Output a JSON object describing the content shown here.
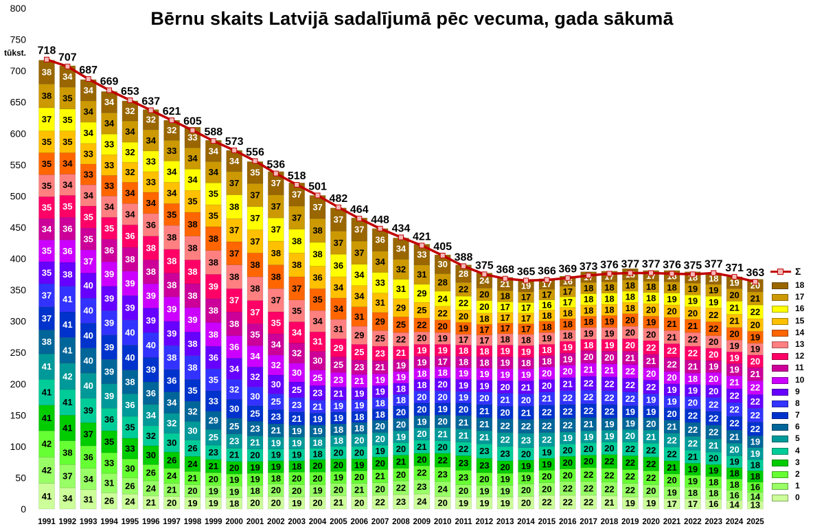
{
  "chart_data": {
    "type": "bar",
    "title": "Bērnu skaits Latvijā sadalījumā pēc vecuma, gada sākumā",
    "ylabel": "tūkst.",
    "ylim": [
      0,
      800
    ],
    "yticks": [
      0,
      50,
      100,
      150,
      200,
      250,
      300,
      350,
      400,
      450,
      500,
      550,
      600,
      650,
      700,
      750,
      800
    ],
    "grid": false,
    "stacked": true,
    "legend_position": "right",
    "categories": [
      "1991",
      "1992",
      "1993",
      "1994",
      "1995",
      "1996",
      "1997",
      "1998",
      "1999",
      "2000",
      "2001",
      "2002",
      "2003",
      "2004",
      "2005",
      "2006",
      "2007",
      "2008",
      "2009",
      "2010",
      "2011",
      "2012",
      "2013",
      "2014",
      "2015",
      "2016",
      "2017",
      "2018",
      "2019",
      "2020",
      "2021",
      "2022",
      "2023",
      "2024",
      "2025"
    ],
    "series": [
      {
        "name": "0",
        "color": "#ccff99",
        "values": [
          41,
          34,
          31,
          26,
          24,
          21,
          20,
          19,
          19,
          18,
          20,
          20,
          19,
          20,
          21,
          20,
          22,
          23,
          24,
          20,
          19,
          19,
          19,
          20,
          22,
          22,
          22,
          21,
          19,
          19,
          17,
          17,
          16,
          14,
          13
        ]
      },
      {
        "name": "1",
        "color": "#99ff66",
        "values": [
          42,
          37,
          34,
          31,
          26,
          24,
          21,
          20,
          19,
          19,
          18,
          20,
          20,
          19,
          20,
          21,
          20,
          22,
          23,
          24,
          20,
          19,
          19,
          20,
          20,
          22,
          22,
          22,
          22,
          20,
          19,
          18,
          18,
          16,
          14
        ]
      },
      {
        "name": "2",
        "color": "#66ff33",
        "values": [
          42,
          38,
          36,
          33,
          30,
          26,
          24,
          21,
          20,
          19,
          19,
          18,
          20,
          20,
          19,
          20,
          21,
          20,
          22,
          23,
          23,
          20,
          19,
          19,
          20,
          20,
          22,
          22,
          22,
          22,
          20,
          19,
          18,
          18,
          16
        ]
      },
      {
        "name": "3",
        "color": "#00cc00",
        "values": [
          41,
          41,
          37,
          35,
          33,
          30,
          26,
          24,
          21,
          20,
          19,
          19,
          18,
          20,
          20,
          19,
          20,
          21,
          20,
          22,
          23,
          23,
          20,
          19,
          19,
          20,
          20,
          22,
          22,
          22,
          21,
          19,
          19,
          18,
          18
        ]
      },
      {
        "name": "4",
        "color": "#00cc99",
        "values": [
          41,
          41,
          39,
          36,
          35,
          32,
          30,
          26,
          23,
          21,
          20,
          19,
          19,
          18,
          20,
          20,
          19,
          20,
          21,
          20,
          22,
          23,
          23,
          20,
          19,
          20,
          20,
          20,
          22,
          22,
          22,
          21,
          20,
          19,
          18
        ]
      },
      {
        "name": "5",
        "color": "#009999",
        "values": [
          41,
          42,
          40,
          39,
          36,
          34,
          32,
          30,
          25,
          23,
          21,
          19,
          19,
          18,
          18,
          20,
          20,
          19,
          20,
          21,
          21,
          21,
          22,
          23,
          22,
          19,
          19,
          19,
          20,
          21,
          22,
          22,
          21,
          20,
          19
        ]
      },
      {
        "name": "6",
        "color": "#006699",
        "values": [
          38,
          41,
          40,
          39,
          38,
          36,
          34,
          32,
          29,
          25,
          23,
          21,
          19,
          19,
          18,
          18,
          20,
          20,
          19,
          20,
          21,
          21,
          22,
          22,
          22,
          22,
          21,
          19,
          19,
          20,
          21,
          22,
          22,
          21,
          19
        ]
      },
      {
        "name": "7",
        "color": "#0033cc",
        "values": [
          37,
          41,
          40,
          39,
          40,
          39,
          36,
          35,
          33,
          30,
          25,
          23,
          21,
          19,
          19,
          18,
          18,
          20,
          20,
          19,
          20,
          21,
          20,
          21,
          22,
          22,
          22,
          22,
          19,
          19,
          20,
          22,
          22,
          22,
          22
        ]
      },
      {
        "name": "8",
        "color": "#3333ff",
        "values": [
          37,
          41,
          40,
          39,
          40,
          40,
          38,
          38,
          35,
          32,
          30,
          25,
          23,
          21,
          19,
          19,
          18,
          18,
          20,
          20,
          19,
          20,
          21,
          20,
          21,
          22,
          22,
          22,
          22,
          19,
          19,
          20,
          22,
          22,
          22
        ]
      },
      {
        "name": "9",
        "color": "#6600ff",
        "values": [
          35,
          38,
          40,
          39,
          39,
          39,
          39,
          38,
          36,
          34,
          32,
          30,
          25,
          23,
          21,
          19,
          19,
          18,
          18,
          20,
          19,
          19,
          20,
          21,
          20,
          21,
          22,
          22,
          22,
          22,
          19,
          19,
          20,
          22,
          22
        ]
      },
      {
        "name": "10",
        "color": "#cc00ff",
        "values": [
          35,
          36,
          37,
          39,
          39,
          39,
          39,
          39,
          38,
          36,
          34,
          32,
          30,
          25,
          23,
          21,
          19,
          19,
          18,
          18,
          19,
          19,
          19,
          19,
          20,
          20,
          21,
          21,
          22,
          20,
          20,
          18,
          20,
          21,
          22
        ]
      },
      {
        "name": "11",
        "color": "#cc0099",
        "values": [
          34,
          36,
          35,
          36,
          38,
          38,
          38,
          38,
          38,
          38,
          35,
          34,
          32,
          30,
          25,
          23,
          21,
          19,
          19,
          17,
          18,
          18,
          19,
          18,
          18,
          19,
          20,
          20,
          21,
          21,
          22,
          21,
          19,
          19,
          21
        ]
      },
      {
        "name": "12",
        "color": "#ff0066",
        "values": [
          35,
          35,
          35,
          35,
          36,
          38,
          38,
          38,
          39,
          37,
          37,
          35,
          34,
          31,
          29,
          25,
          23,
          21,
          19,
          19,
          18,
          18,
          19,
          19,
          18,
          19,
          18,
          19,
          20,
          22,
          22,
          22,
          20,
          19,
          20
        ]
      },
      {
        "name": "13",
        "color": "#ff8080",
        "values": [
          35,
          34,
          34,
          34,
          34,
          36,
          38,
          38,
          38,
          38,
          38,
          37,
          35,
          34,
          31,
          29,
          25,
          22,
          20,
          19,
          17,
          17,
          18,
          18,
          19,
          18,
          19,
          19,
          20,
          20,
          21,
          22,
          20,
          19,
          19
        ]
      },
      {
        "name": "14",
        "color": "#ff6600",
        "values": [
          35,
          34,
          33,
          33,
          34,
          34,
          35,
          38,
          38,
          37,
          38,
          38,
          37,
          35,
          34,
          31,
          29,
          25,
          22,
          20,
          19,
          17,
          17,
          17,
          18,
          18,
          18,
          19,
          20,
          19,
          21,
          21,
          22,
          20,
          19
        ]
      },
      {
        "name": "15",
        "color": "#ffc000",
        "values": [
          35,
          35,
          33,
          33,
          32,
          33,
          34,
          35,
          35,
          37,
          37,
          38,
          38,
          36,
          34,
          34,
          31,
          29,
          25,
          22,
          20,
          18,
          17,
          17,
          18,
          18,
          18,
          18,
          18,
          20,
          20,
          20,
          22,
          21,
          20
        ]
      },
      {
        "name": "16",
        "color": "#ffff00",
        "values": [
          37,
          35,
          34,
          33,
          32,
          33,
          34,
          34,
          35,
          38,
          37,
          37,
          38,
          38,
          36,
          34,
          33,
          31,
          29,
          24,
          22,
          20,
          17,
          17,
          16,
          17,
          18,
          18,
          18,
          18,
          19,
          19,
          19,
          21,
          22
        ]
      },
      {
        "name": "17",
        "color": "#cc9900",
        "values": [
          38,
          35,
          34,
          34,
          34,
          34,
          33,
          34,
          34,
          37,
          37,
          37,
          37,
          38,
          37,
          37,
          34,
          32,
          31,
          28,
          22,
          20,
          18,
          17,
          17,
          17,
          18,
          18,
          18,
          18,
          18,
          19,
          19,
          20,
          21
        ]
      },
      {
        "name": "18",
        "color": "#996600",
        "values": [
          38,
          34,
          34,
          34,
          32,
          32,
          32,
          33,
          34,
          34,
          35,
          37,
          37,
          37,
          37,
          37,
          36,
          34,
          33,
          30,
          28,
          24,
          21,
          19,
          17,
          16,
          17,
          17,
          18,
          17,
          18,
          18,
          18,
          19,
          20
        ]
      }
    ],
    "total": {
      "name": "Σ",
      "color": "#c00000",
      "values": [
        718,
        707,
        687,
        669,
        653,
        637,
        621,
        605,
        588,
        573,
        556,
        536,
        518,
        501,
        482,
        464,
        448,
        434,
        421,
        405,
        388,
        375,
        368,
        365,
        366,
        369,
        373,
        376,
        377,
        377,
        376,
        375,
        377,
        371,
        363
      ]
    }
  }
}
